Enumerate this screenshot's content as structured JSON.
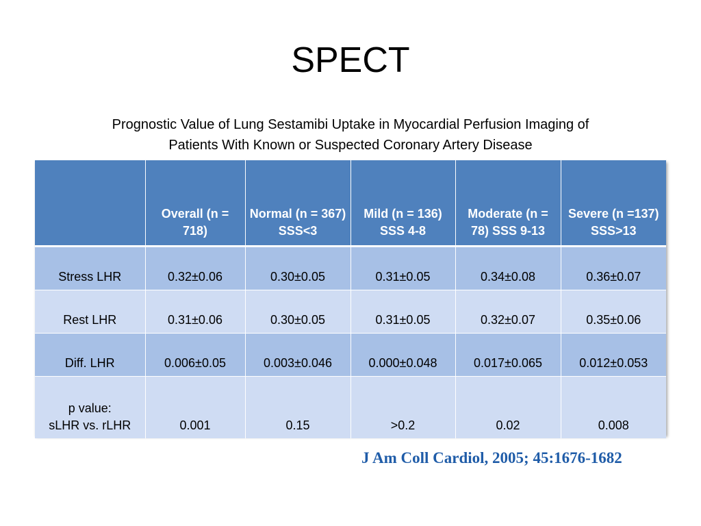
{
  "title": "SPECT",
  "subtitle": {
    "line1": "Prognostic Value of Lung Sestamibi Uptake in Myocardial Perfusion Imaging of",
    "line2": "Patients With Known or Suspected Coronary Artery Disease"
  },
  "table": {
    "headers": [
      "",
      "Overall (n = 718)",
      "Normal (n = 367) SSS<3",
      "Mild (n = 136) SSS 4-8",
      "Moderate (n = 78) SSS 9-13",
      "Severe (n =137)  SSS>13"
    ],
    "rows": [
      {
        "label_line1": "Stress LHR",
        "label_line2": "",
        "values": [
          "0.32±0.06",
          "0.30±0.05",
          "0.31±0.05",
          "0.34±0.08",
          "0.36±0.07"
        ]
      },
      {
        "label_line1": "Rest LHR",
        "label_line2": "",
        "values": [
          "0.31±0.06",
          "0.30±0.05",
          "0.31±0.05",
          "0.32±0.07",
          "0.35±0.06"
        ]
      },
      {
        "label_line1": "Diff. LHR",
        "label_line2": "",
        "values": [
          "0.006±0.05",
          "0.003±0.046",
          "0.000±0.048",
          "0.017±0.065",
          "0.012±0.053"
        ]
      },
      {
        "label_line1": "p value:",
        "label_line2": "sLHR vs. rLHR",
        "values": [
          "0.001",
          "0.15",
          ">0.2",
          "0.02",
          "0.008"
        ]
      }
    ]
  },
  "citation": "J Am Coll Cardiol, 2005; 45:1676-1682",
  "colors": {
    "header_bg": "#4f81bd",
    "row_dark": "#a7c0e6",
    "row_light": "#cfdcf3",
    "citation": "#1f5ca8"
  }
}
